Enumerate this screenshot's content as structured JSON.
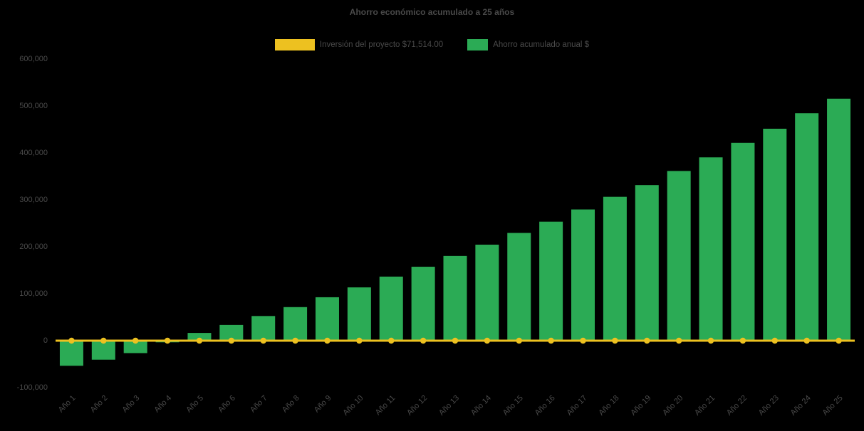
{
  "chart_data": {
    "type": "bar",
    "title": "Ahorro económico acumulado a 25 años",
    "categories": [
      "Año 1",
      "Año 2",
      "Año 3",
      "Año 4",
      "Año 5",
      "Año 6",
      "Año 7",
      "Año 8",
      "Año 9",
      "Año 10",
      "Año 11",
      "Año 12",
      "Año 13",
      "Año 14",
      "Año 15",
      "Año 16",
      "Año 17",
      "Año 18",
      "Año 19",
      "Año 20",
      "Año 21",
      "Año 22",
      "Año 23",
      "Año 24",
      "Año 25"
    ],
    "series": [
      {
        "name": "Inversión del proyecto $71,514.00",
        "type": "line",
        "color": "#edc120",
        "values": [
          0,
          0,
          0,
          0,
          0,
          0,
          0,
          0,
          0,
          0,
          0,
          0,
          0,
          0,
          0,
          0,
          0,
          0,
          0,
          0,
          0,
          0,
          0,
          0,
          0
        ]
      },
      {
        "name": "Ahorro acumulado anual $",
        "type": "bar",
        "color": "#2bab55",
        "values": [
          -55000,
          -42000,
          -28000,
          -5000,
          15000,
          32000,
          51000,
          70000,
          91000,
          112000,
          135000,
          156000,
          179000,
          203000,
          228000,
          252000,
          278000,
          305000,
          330000,
          360000,
          389000,
          420000,
          450000,
          483000,
          514000
        ]
      }
    ],
    "xlabel": "",
    "ylabel": "",
    "ylim": [
      -100000,
      600000
    ],
    "ytick_step": 100000,
    "ytick_labels": [
      "600,000",
      "500,000",
      "400,000",
      "300,000",
      "200,000",
      "100,000",
      "0",
      "-100,000"
    ],
    "grid": false,
    "legend_position": "top-center",
    "background_color": "#000000",
    "text_color": "#4a4a4a"
  }
}
